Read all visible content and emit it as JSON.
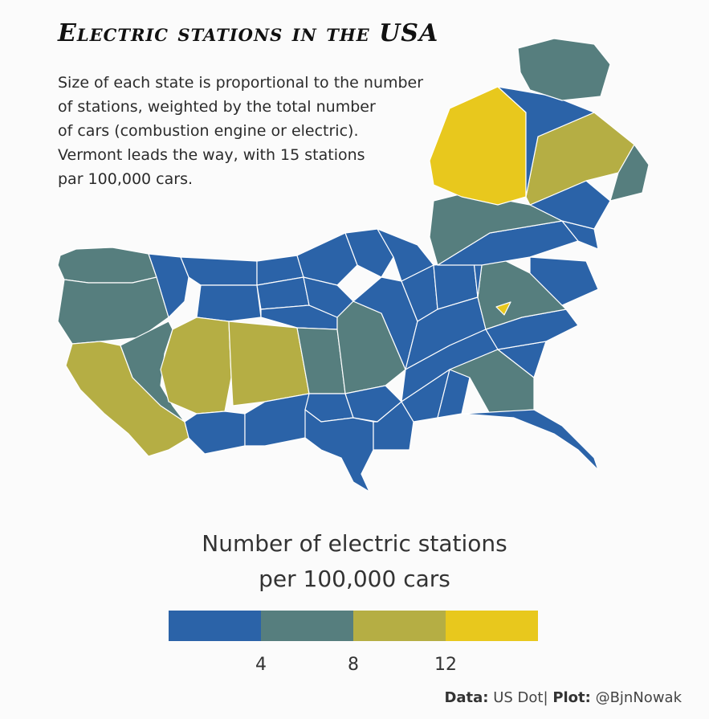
{
  "title": "Electric stations in the USA",
  "subtitle_lines": [
    "Size of each state is proportional to the number",
    "of stations, weighted by the total number",
    "of cars (combustion engine or electric).",
    "Vermont leads the way, with 15 stations",
    "par 100,000 cars."
  ],
  "legend": {
    "title_lines": [
      "Number of electric stations",
      "per 100,000 cars"
    ],
    "colors": [
      "#2b63a8",
      "#567e7e",
      "#b5ae44",
      "#e8c81d"
    ],
    "ticks": [
      "4",
      "8",
      "12"
    ]
  },
  "caption": {
    "data_label": "Data:",
    "data_value": "US Dot",
    "separator": "|",
    "plot_label": "Plot:",
    "plot_value": "@BjnNowak"
  },
  "colors": {
    "bin1": "#2b63a8",
    "bin2": "#567e7e",
    "bin3": "#b5ae44",
    "bin4": "#e8c81d",
    "border": "#ffffff"
  }
}
